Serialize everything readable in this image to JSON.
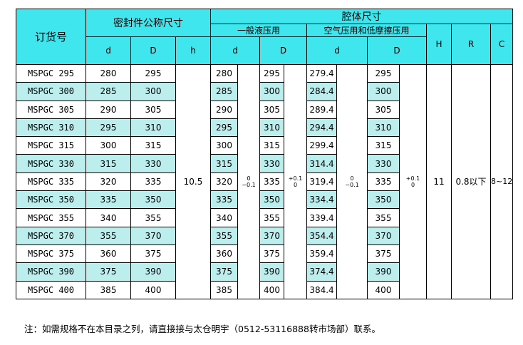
{
  "header": {
    "order_no": "订货号",
    "seal_size": "密封件公称尺寸",
    "cavity_size": "腔体尺寸",
    "general_hydraulic": "一般液压用",
    "pneumatic_low_friction": "空气压用和低摩擦压用",
    "d": "d",
    "D": "D",
    "h": "h",
    "H": "H",
    "R": "R",
    "C": "C"
  },
  "rows": [
    [
      "MSPGC 295",
      "280",
      "295",
      "280",
      "295",
      "279.4",
      "295"
    ],
    [
      "MSPGC 300",
      "285",
      "300",
      "285",
      "300",
      "284.4",
      "300"
    ],
    [
      "MSPGC 305",
      "290",
      "305",
      "290",
      "305",
      "289.4",
      "305"
    ],
    [
      "MSPGC 310",
      "295",
      "310",
      "295",
      "310",
      "294.4",
      "310"
    ],
    [
      "MSPGC 315",
      "300",
      "315",
      "300",
      "315",
      "299.4",
      "315"
    ],
    [
      "MSPGC 330",
      "315",
      "330",
      "315",
      "330",
      "314.4",
      "330"
    ],
    [
      "MSPGC 335",
      "320",
      "335",
      "320",
      "335",
      "319.4",
      "335"
    ],
    [
      "MSPGC 350",
      "335",
      "350",
      "335",
      "350",
      "334.4",
      "350"
    ],
    [
      "MSPGC 355",
      "340",
      "355",
      "340",
      "355",
      "339.4",
      "355"
    ],
    [
      "MSPGC 370",
      "355",
      "370",
      "355",
      "370",
      "354.4",
      "370"
    ],
    [
      "MSPGC 375",
      "360",
      "375",
      "360",
      "375",
      "359.4",
      "375"
    ],
    [
      "MSPGC 390",
      "375",
      "390",
      "375",
      "390",
      "374.4",
      "390"
    ],
    [
      "MSPGC 400",
      "385",
      "400",
      "385",
      "400",
      "384.4",
      "400"
    ]
  ],
  "merged": {
    "h": "10.5",
    "tol_d1": [
      "0",
      "−0.1"
    ],
    "tol_D1": [
      "+0.1",
      "0"
    ],
    "tol_d2": [
      "0",
      "−0.1"
    ],
    "tol_D2": [
      "+0.1",
      "0"
    ],
    "H": "11",
    "R": "0.8以下",
    "C": "8~12"
  },
  "note": "注：如需规格不在本目录之列，请直接接与太仓明宇（0512-53116888转市场部）联系。",
  "colors": {
    "header": "#3fe6ee",
    "alt_row": "#bdeeee"
  }
}
